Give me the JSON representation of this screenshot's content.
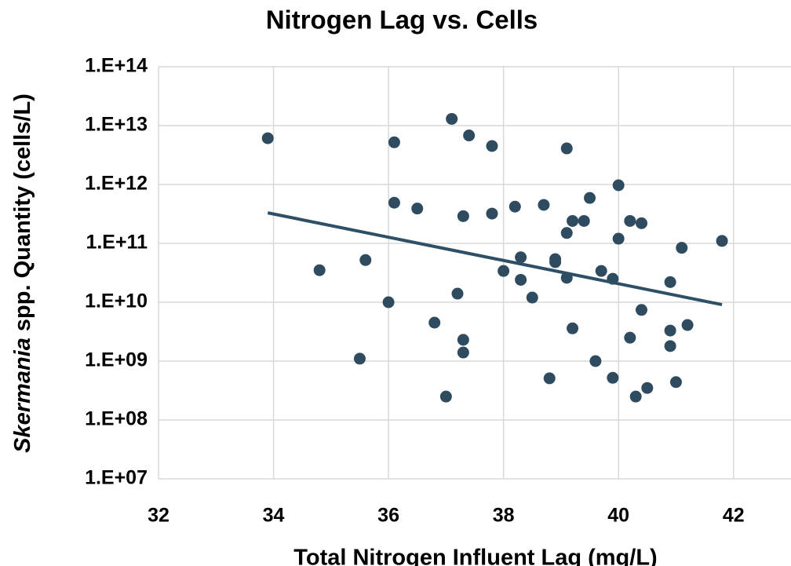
{
  "chart_data": {
    "type": "scatter",
    "title": "Nitrogen Lag vs. Cells",
    "x_label": "Total Nitrogen Influent Lag (mg/L)",
    "y_label_parts": [
      "Skermania",
      " spp. Quantity (cells/L)"
    ],
    "xlim": [
      32,
      43
    ],
    "xticks": [
      32,
      34,
      36,
      38,
      40,
      42
    ],
    "ylim": [
      10000000.0,
      100000000000000.0
    ],
    "y_log": true,
    "yticks": [
      {
        "value": 10000000.0,
        "label": "1.E+07"
      },
      {
        "value": 100000000.0,
        "label": "1.E+08"
      },
      {
        "value": 1000000000.0,
        "label": "1.E+09"
      },
      {
        "value": 10000000000.0,
        "label": "1.E+10"
      },
      {
        "value": 100000000000.0,
        "label": "1.E+11"
      },
      {
        "value": 1000000000000.0,
        "label": "1.E+12"
      },
      {
        "value": 10000000000000.0,
        "label": "1.E+13"
      },
      {
        "value": 100000000000000.0,
        "label": "1.E+14"
      }
    ],
    "grid": true,
    "color": "#2f4b60",
    "x": [
      33.9,
      34.8,
      35.6,
      35.5,
      36.0,
      36.1,
      36.1,
      36.5,
      36.8,
      37.0,
      37.1,
      37.2,
      37.3,
      37.3,
      37.3,
      37.4,
      37.8,
      37.8,
      38.0,
      38.2,
      38.3,
      38.3,
      38.5,
      38.7,
      38.8,
      38.9,
      38.9,
      39.1,
      39.1,
      39.1,
      39.2,
      39.2,
      39.4,
      39.5,
      39.6,
      39.7,
      39.9,
      39.9,
      40.0,
      40.0,
      40.2,
      40.2,
      40.3,
      40.4,
      40.4,
      40.5,
      40.9,
      40.9,
      40.9,
      41.0,
      41.1,
      41.2,
      41.8
    ],
    "values": [
      6100000000000.0,
      35000000000.0,
      52000000000.0,
      1100000000.0,
      10000000000.0,
      5200000000000.0,
      490000000000.0,
      390000000000.0,
      4500000000.0,
      250000000.0,
      13000000000000.0,
      14000000000.0,
      290000000000.0,
      2300000000.0,
      1400000000.0,
      6800000000000.0,
      4500000000000.0,
      320000000000.0,
      34000000000.0,
      420000000000.0,
      58000000000.0,
      24000000000.0,
      12000000000.0,
      450000000000.0,
      510000000.0,
      54000000000.0,
      48000000000.0,
      4100000000000.0,
      150000000000.0,
      26000000000.0,
      240000000000.0,
      3600000000.0,
      240000000000.0,
      590000000000.0,
      1000000000.0,
      34000000000.0,
      520000000.0,
      25000000000.0,
      970000000000.0,
      120000000000.0,
      240000000000.0,
      2500000000.0,
      250000000.0,
      220000000000.0,
      7400000000.0,
      350000000.0,
      22000000000.0,
      3300000000.0,
      1800000000.0,
      440000000.0,
      84000000000.0,
      4100000000.0,
      110000000000.0
    ],
    "trendline": {
      "x": [
        33.9,
        41.8
      ],
      "values": [
        330000000000.0,
        9100000000.0
      ],
      "color": "#2e4f66"
    }
  }
}
